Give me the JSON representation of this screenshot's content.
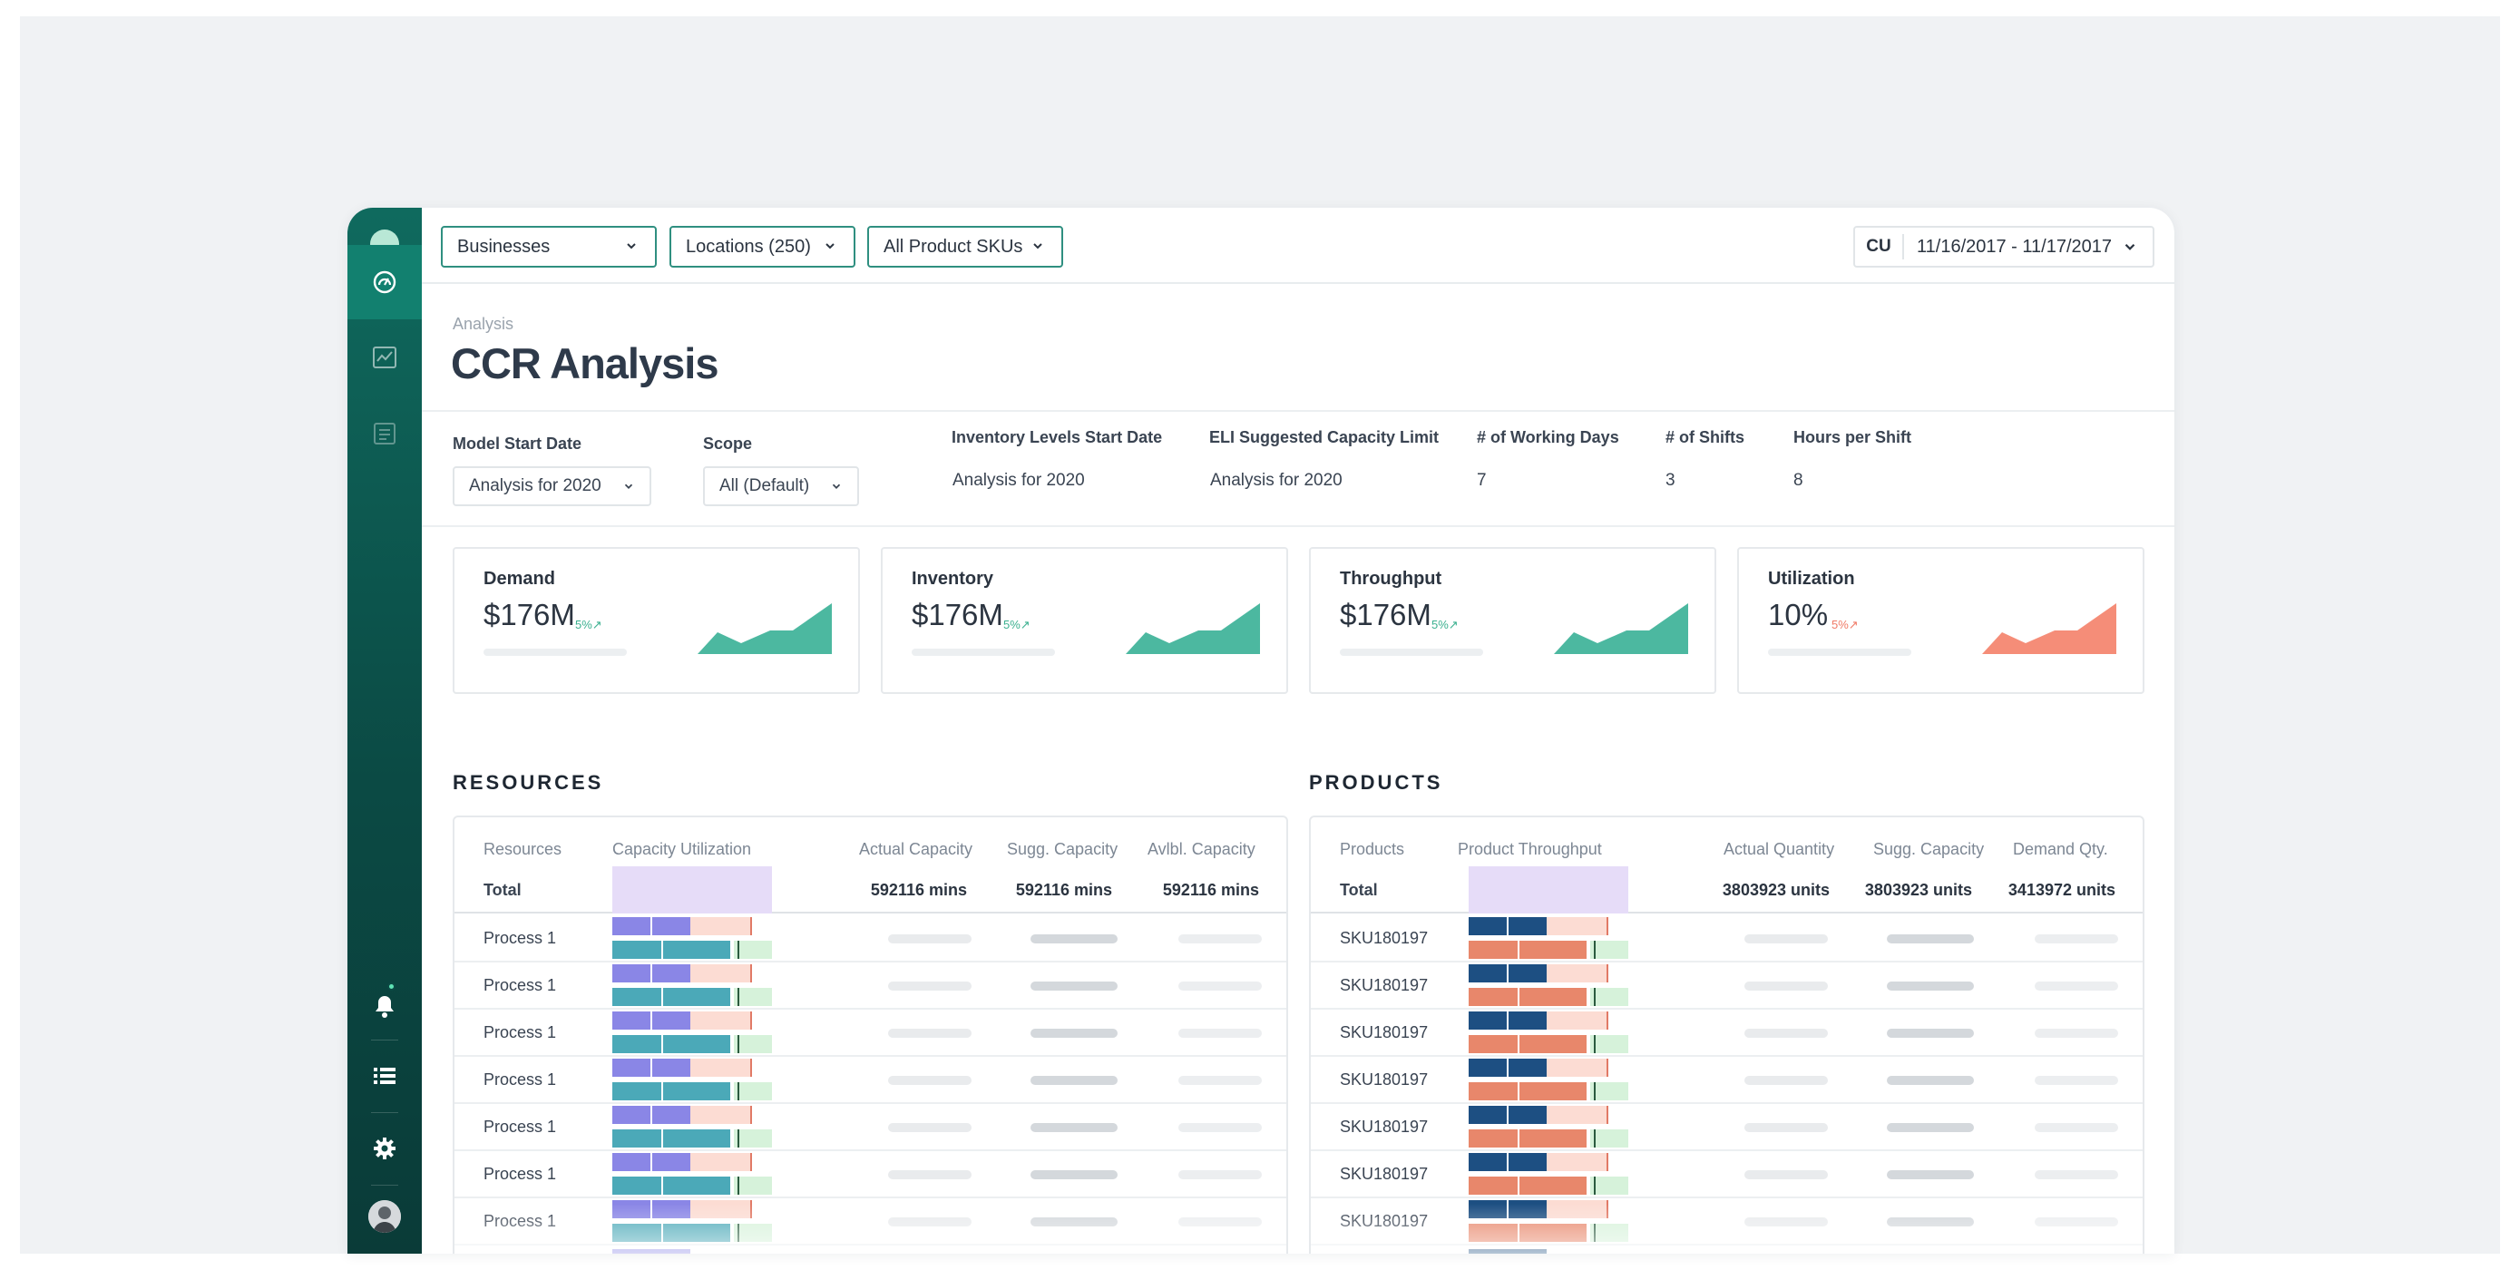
{
  "filters": {
    "businesses": "Businesses",
    "locations": "Locations (250)",
    "skus": "All Product SKUs",
    "date_prefix": "CU",
    "date_range": "11/16/2017 - 11/17/2017"
  },
  "header": {
    "breadcrumb": "Analysis",
    "title": "CCR Analysis"
  },
  "params": {
    "model_start_date": {
      "label": "Model Start Date",
      "value": "Analysis for 2020"
    },
    "scope": {
      "label": "Scope",
      "value": "All (Default)"
    },
    "inventory_start": {
      "label": "Inventory Levels Start Date",
      "value": "Analysis for 2020"
    },
    "eli_capacity": {
      "label": "ELI Suggested Capacity Limit",
      "value": "Analysis for 2020"
    },
    "working_days": {
      "label": "# of Working Days",
      "value": "7"
    },
    "shifts": {
      "label": "# of Shifts",
      "value": "3"
    },
    "hours_per_shift": {
      "label": "Hours per Shift",
      "value": "8"
    }
  },
  "kpis": [
    {
      "label": "Demand",
      "value": "$176M",
      "delta": "5%↗",
      "color": "#4cb8a0"
    },
    {
      "label": "Inventory",
      "value": "$176M",
      "delta": "5%↗",
      "color": "#4cb8a0"
    },
    {
      "label": "Throughput",
      "value": "$176M",
      "delta": "5%↗",
      "color": "#4cb8a0"
    },
    {
      "label": "Utilization",
      "value": "10%",
      "delta": "5%↗",
      "color": "#f58d78"
    }
  ],
  "resources": {
    "section_title": "RESOURCES",
    "columns": [
      "Resources",
      "Capacity Utilization",
      "Actual Capacity",
      "Sugg. Capacity",
      "Avlbl. Capacity"
    ],
    "total": {
      "label": "Total",
      "actual": "592116 mins",
      "sugg": "592116 mins",
      "avlbl": "592116 mins"
    },
    "rows": [
      "Process 1",
      "Process 1",
      "Process 1",
      "Process 1",
      "Process 1",
      "Process 1",
      "Process 1"
    ]
  },
  "products": {
    "section_title": "PRODUCTS",
    "columns": [
      "Products",
      "Product Throughput",
      "Actual Quantity",
      "Sugg. Capacity",
      "Demand Qty."
    ],
    "total": {
      "label": "Total",
      "actual": "3803923 units",
      "sugg": "3803923 units",
      "demand": "3413972 units"
    },
    "rows": [
      "SKU180197",
      "SKU180197",
      "SKU180197",
      "SKU180197",
      "SKU180197",
      "SKU180197",
      "SKU180197"
    ]
  },
  "colors": {
    "sidebar": "#0b4a44",
    "accent": "#2f8f80",
    "teal_chart": "#4cb8a0",
    "coral_chart": "#f58d78",
    "resource_bar_top": "#8a86e6",
    "resource_bar_bottom": "#4ba9b8",
    "product_bar_top": "#1d4f82",
    "product_bar_bottom": "#e8876b"
  }
}
